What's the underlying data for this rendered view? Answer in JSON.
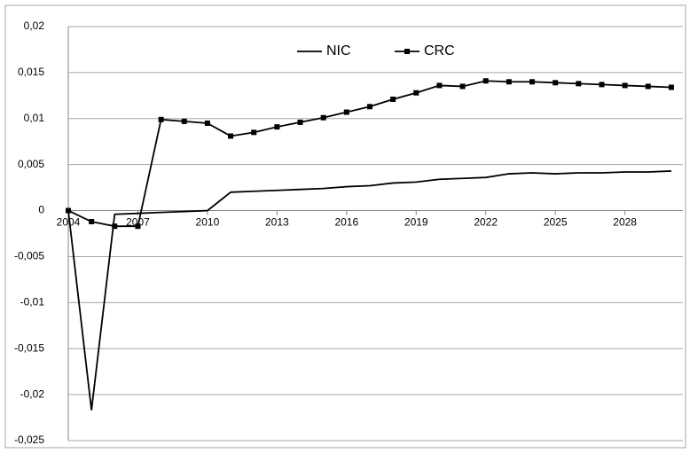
{
  "chart_data": {
    "type": "line",
    "x": [
      2004,
      2005,
      2006,
      2007,
      2008,
      2009,
      2010,
      2011,
      2012,
      2013,
      2014,
      2015,
      2016,
      2017,
      2018,
      2019,
      2020,
      2021,
      2022,
      2023,
      2024,
      2025,
      2026,
      2027,
      2028,
      2029,
      2030
    ],
    "series": [
      {
        "name": "NIC",
        "color": "#000000",
        "marker": null,
        "values": [
          0,
          -0.0217,
          -0.0004,
          -0.0003,
          -0.0002,
          -0.0001,
          0,
          0.002,
          0.0021,
          0.0022,
          0.0023,
          0.0024,
          0.0026,
          0.0027,
          0.003,
          0.0031,
          0.0034,
          0.0035,
          0.0036,
          0.004,
          0.0041,
          0.004,
          0.0041,
          0.0041,
          0.0042,
          0.0042,
          0.0043
        ]
      },
      {
        "name": "CRC",
        "color": "#000000",
        "marker": "square",
        "values": [
          0,
          -0.0012,
          -0.0017,
          -0.0017,
          0.0099,
          0.0097,
          0.0095,
          0.0081,
          0.0085,
          0.0091,
          0.0096,
          0.0101,
          0.0107,
          0.0113,
          0.0121,
          0.0128,
          0.0136,
          0.0135,
          0.0141,
          0.014,
          0.014,
          0.0139,
          0.0138,
          0.0137,
          0.0136,
          0.0135,
          0.0134
        ]
      }
    ],
    "xlim": [
      2004,
      2030.5
    ],
    "xticks": [
      2004,
      2007,
      2010,
      2013,
      2016,
      2019,
      2022,
      2025,
      2028
    ],
    "ylim": [
      -0.025,
      0.02
    ],
    "yticks": [
      {
        "value": -0.025,
        "label": "-0,025"
      },
      {
        "value": -0.02,
        "label": "-0,02"
      },
      {
        "value": -0.015,
        "label": "-0,015"
      },
      {
        "value": -0.01,
        "label": "-0,01"
      },
      {
        "value": -0.005,
        "label": "-0,005"
      },
      0,
      {
        "value": 0.005,
        "label": "0,005"
      },
      {
        "value": 0.01,
        "label": "0,01"
      },
      {
        "value": 0.015,
        "label": "0,015"
      },
      {
        "value": 0.02,
        "label": "0,02"
      }
    ],
    "grid": true,
    "legend": "top"
  }
}
